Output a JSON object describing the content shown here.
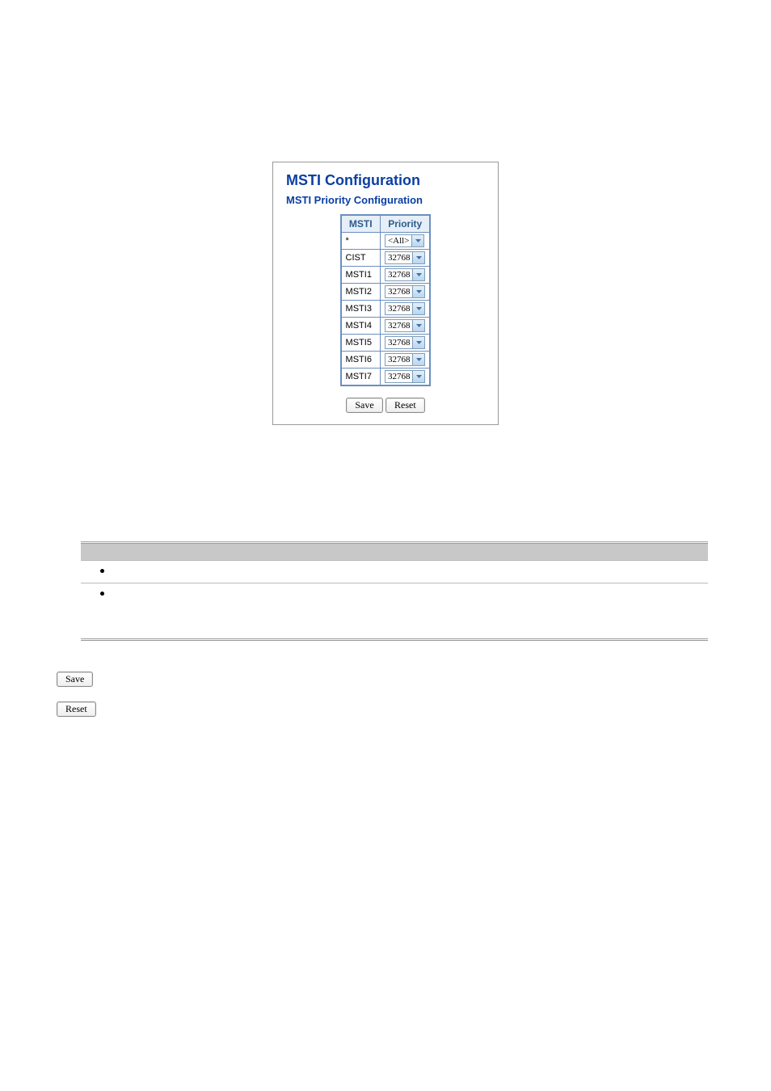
{
  "panel": {
    "title": "MSTI Configuration",
    "subtitle": "MSTI Priority Configuration",
    "columns": {
      "msti": "MSTI",
      "priority": "Priority"
    },
    "rows": [
      {
        "msti": "*",
        "priority": "<All>"
      },
      {
        "msti": "CIST",
        "priority": "32768"
      },
      {
        "msti": "MSTI1",
        "priority": "32768"
      },
      {
        "msti": "MSTI2",
        "priority": "32768"
      },
      {
        "msti": "MSTI3",
        "priority": "32768"
      },
      {
        "msti": "MSTI4",
        "priority": "32768"
      },
      {
        "msti": "MSTI5",
        "priority": "32768"
      },
      {
        "msti": "MSTI6",
        "priority": "32768"
      },
      {
        "msti": "MSTI7",
        "priority": "32768"
      }
    ],
    "buttons": {
      "save": "Save",
      "reset": "Reset"
    }
  },
  "bottom_buttons": {
    "save": "Save",
    "reset": "Reset"
  },
  "colors": {
    "title_color": "#0b3fa3",
    "table_border": "#6b8fbf",
    "header_bg": "#e6eef7",
    "header_text": "#2d5c8c",
    "select_border": "#7e9db9",
    "select_arrow_top": "#e3f0fb",
    "select_arrow_bottom": "#b8d6f0",
    "desc_header_bg": "#c8c8c8"
  }
}
